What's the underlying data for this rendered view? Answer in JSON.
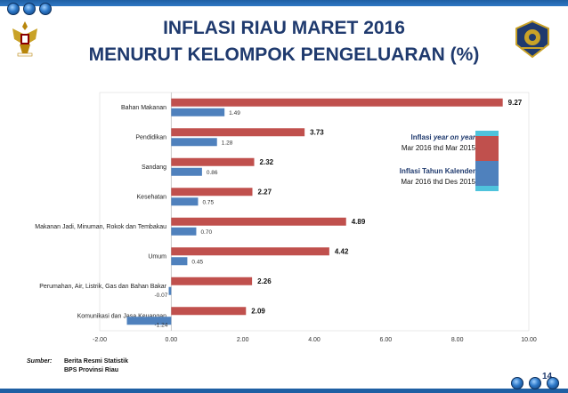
{
  "header": {
    "title_line1": "INFLASI RIAU MARET 2016",
    "title_line2": "MENURUT KELOMPOK PENGELUARAN (%)"
  },
  "legend": {
    "yoy_label": "Inflasi year on year",
    "yoy_period": "Mar 2016 thd Mar 2015",
    "ytd_label": "Inflasi Tahun Kalender",
    "ytd_period": "Mar 2016 thd Des 2015"
  },
  "source": {
    "label": "Sumber:",
    "line1": "Berita Resmi Statistik",
    "line2": "BPS Provinsi Riau"
  },
  "page_number": "14",
  "colors": {
    "yoy": "#c0504d",
    "ytd": "#4f81bd",
    "accent": "#1f3a6e"
  },
  "chart_data": {
    "type": "bar",
    "orientation": "horizontal",
    "categories": [
      "Bahan Makanan",
      "Pendidikan",
      "Sandang",
      "Kesehatan",
      "Makanan Jadi, Minuman, Rokok dan Tembakau",
      "Umum",
      "Perumahan, Air, Listrik, Gas dan Bahan Bakar",
      "Komunikasi dan Jasa Keuangan"
    ],
    "series": [
      {
        "name": "Inflasi year on year",
        "values": [
          9.27,
          3.73,
          2.32,
          2.27,
          4.89,
          4.42,
          2.26,
          2.09
        ],
        "labels": [
          "9.27",
          "3.73",
          "2.32",
          "2.27",
          "4.89",
          "4.42",
          "2.26",
          "2.09"
        ]
      },
      {
        "name": "Inflasi Tahun Kalender",
        "values": [
          1.49,
          1.28,
          0.86,
          0.75,
          0.7,
          0.45,
          -0.07,
          -1.24
        ],
        "labels": [
          "1.49",
          "1.28",
          "0.86",
          "0.75",
          "0.70",
          "0.45",
          "-0.07",
          "-1.24"
        ]
      }
    ],
    "xlim": [
      -2,
      10
    ],
    "xticks": [
      "-2.00",
      "0.00",
      "2.00",
      "4.00",
      "6.00",
      "8.00",
      "10.00"
    ],
    "xtick_values": [
      -2,
      0,
      2,
      4,
      6,
      8,
      10
    ],
    "grid": false,
    "legend_position": "right"
  }
}
